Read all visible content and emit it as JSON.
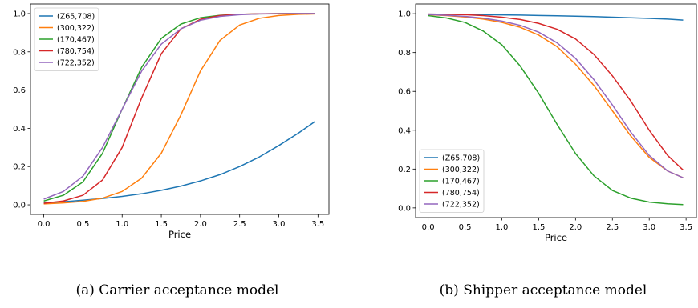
{
  "chart_data": [
    {
      "type": "line",
      "caption": "(a) Carrier acceptance model",
      "title": "",
      "xlabel": "Price",
      "ylabel": "",
      "xlim": [
        -0.17,
        3.64
      ],
      "ylim": [
        -0.05,
        1.05
      ],
      "xticks": [
        "0.0",
        "0.5",
        "1.0",
        "1.5",
        "2.0",
        "2.5",
        "3.0",
        "3.5"
      ],
      "yticks": [
        "0.0",
        "0.2",
        "0.4",
        "0.6",
        "0.8",
        "1.0"
      ],
      "legend_position": "upper-left",
      "x": [
        0.0,
        0.25,
        0.5,
        0.75,
        1.0,
        1.25,
        1.5,
        1.75,
        2.0,
        2.25,
        2.5,
        2.75,
        3.0,
        3.25,
        3.46
      ],
      "series": [
        {
          "name": "(Z65,708)",
          "color": "#1f77b4",
          "values": [
            0.01,
            0.016,
            0.024,
            0.033,
            0.044,
            0.058,
            0.076,
            0.098,
            0.125,
            0.158,
            0.2,
            0.25,
            0.31,
            0.375,
            0.435
          ]
        },
        {
          "name": "(300,322)",
          "color": "#ff7f0e",
          "values": [
            0.005,
            0.01,
            0.018,
            0.035,
            0.07,
            0.14,
            0.27,
            0.47,
            0.7,
            0.86,
            0.94,
            0.975,
            0.99,
            0.996,
            0.998
          ]
        },
        {
          "name": "(170,467)",
          "color": "#2ca02c",
          "values": [
            0.02,
            0.05,
            0.12,
            0.27,
            0.5,
            0.72,
            0.87,
            0.945,
            0.978,
            0.991,
            0.996,
            0.998,
            1.0,
            1.0,
            1.0
          ]
        },
        {
          "name": "(780,754)",
          "color": "#d62728",
          "values": [
            0.008,
            0.02,
            0.05,
            0.13,
            0.3,
            0.56,
            0.79,
            0.92,
            0.97,
            0.99,
            0.996,
            0.999,
            1.0,
            1.0,
            1.0
          ]
        },
        {
          "name": "(722,352)",
          "color": "#9467bd",
          "values": [
            0.03,
            0.07,
            0.15,
            0.3,
            0.5,
            0.7,
            0.84,
            0.92,
            0.965,
            0.985,
            0.994,
            0.998,
            0.999,
            1.0,
            1.0
          ]
        }
      ]
    },
    {
      "type": "line",
      "caption": "(b) Shipper acceptance model",
      "title": "",
      "xlabel": "Price",
      "ylabel": "",
      "xlim": [
        -0.17,
        3.64
      ],
      "ylim": [
        -0.05,
        1.05
      ],
      "xticks": [
        "0.0",
        "0.5",
        "1.0",
        "1.5",
        "2.0",
        "2.5",
        "3.0",
        "3.5"
      ],
      "yticks": [
        "0.0",
        "0.2",
        "0.4",
        "0.6",
        "0.8",
        "1.0"
      ],
      "legend_position": "lower-left",
      "x": [
        0.0,
        0.25,
        0.5,
        0.75,
        1.0,
        1.25,
        1.5,
        1.75,
        2.0,
        2.25,
        2.5,
        2.75,
        3.0,
        3.25,
        3.46
      ],
      "series": [
        {
          "name": "(Z65,708)",
          "color": "#1f77b4",
          "values": [
            0.998,
            0.997,
            0.996,
            0.995,
            0.994,
            0.993,
            0.991,
            0.989,
            0.987,
            0.985,
            0.982,
            0.979,
            0.976,
            0.972,
            0.967
          ]
        },
        {
          "name": "(300,322)",
          "color": "#ff7f0e",
          "values": [
            0.995,
            0.99,
            0.983,
            0.972,
            0.955,
            0.93,
            0.89,
            0.83,
            0.74,
            0.63,
            0.5,
            0.37,
            0.26,
            0.19,
            0.155
          ]
        },
        {
          "name": "(170,467)",
          "color": "#2ca02c",
          "values": [
            0.99,
            0.978,
            0.955,
            0.91,
            0.84,
            0.73,
            0.59,
            0.43,
            0.28,
            0.165,
            0.09,
            0.05,
            0.03,
            0.021,
            0.017
          ]
        },
        {
          "name": "(780,754)",
          "color": "#d62728",
          "values": [
            0.998,
            0.997,
            0.995,
            0.99,
            0.982,
            0.97,
            0.95,
            0.92,
            0.87,
            0.79,
            0.68,
            0.55,
            0.4,
            0.27,
            0.195
          ]
        },
        {
          "name": "(722,352)",
          "color": "#9467bd",
          "values": [
            0.996,
            0.992,
            0.986,
            0.977,
            0.962,
            0.94,
            0.905,
            0.85,
            0.77,
            0.66,
            0.53,
            0.39,
            0.27,
            0.19,
            0.155
          ]
        }
      ]
    }
  ]
}
